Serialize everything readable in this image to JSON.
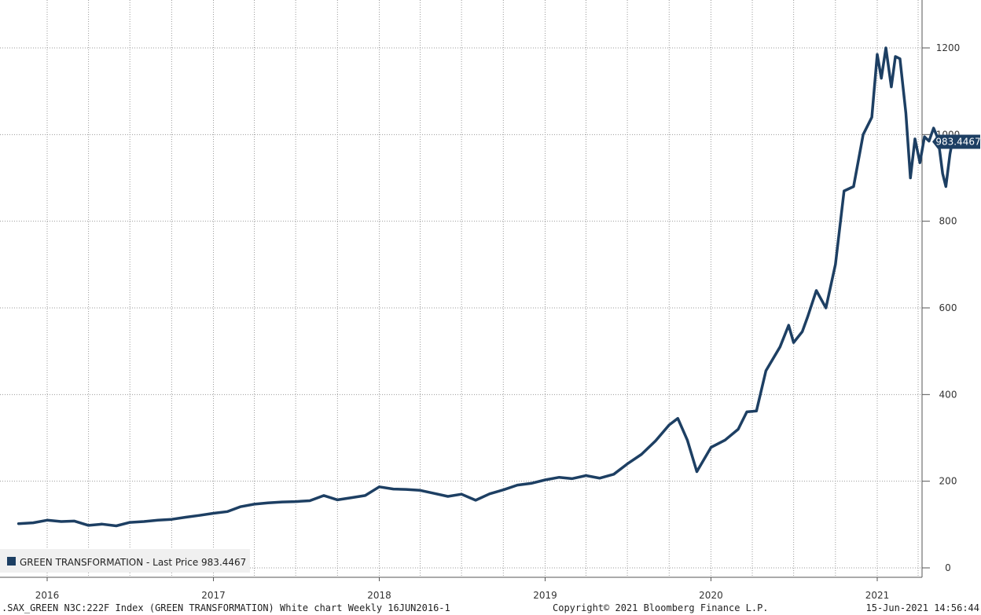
{
  "chart_data": {
    "type": "line",
    "title": "",
    "xlabel": "",
    "ylabel": "",
    "ylim": [
      0,
      1300
    ],
    "y_ticks": [
      0,
      200,
      400,
      600,
      800,
      1000,
      1200
    ],
    "x_ticks": [
      "2016",
      "2017",
      "2018",
      "2019",
      "2020",
      "2021"
    ],
    "x_tick_dates": [
      "2016-01-01",
      "2017-01-01",
      "2018-01-01",
      "2019-01-01",
      "2020-01-01",
      "2021-01-01"
    ],
    "grid": true,
    "legend_position": "bottom-left",
    "series": [
      {
        "name": "GREEN TRANSFORMATION",
        "color": "#1d3f63",
        "points": [
          [
            "2015-10-30",
            102
          ],
          [
            "2015-12-01",
            104
          ],
          [
            "2016-01-01",
            110
          ],
          [
            "2016-02-01",
            107
          ],
          [
            "2016-03-01",
            108
          ],
          [
            "2016-04-01",
            98
          ],
          [
            "2016-05-01",
            101
          ],
          [
            "2016-06-01",
            97
          ],
          [
            "2016-07-01",
            105
          ],
          [
            "2016-08-01",
            107
          ],
          [
            "2016-09-01",
            110
          ],
          [
            "2016-10-01",
            112
          ],
          [
            "2016-11-01",
            117
          ],
          [
            "2016-12-01",
            121
          ],
          [
            "2017-01-01",
            126
          ],
          [
            "2017-02-01",
            130
          ],
          [
            "2017-03-01",
            141
          ],
          [
            "2017-04-01",
            147
          ],
          [
            "2017-05-01",
            150
          ],
          [
            "2017-06-01",
            152
          ],
          [
            "2017-07-01",
            153
          ],
          [
            "2017-08-01",
            155
          ],
          [
            "2017-09-01",
            167
          ],
          [
            "2017-10-01",
            157
          ],
          [
            "2017-11-01",
            162
          ],
          [
            "2017-12-01",
            167
          ],
          [
            "2018-01-01",
            187
          ],
          [
            "2018-02-01",
            182
          ],
          [
            "2018-03-01",
            181
          ],
          [
            "2018-04-01",
            179
          ],
          [
            "2018-05-01",
            172
          ],
          [
            "2018-06-01",
            165
          ],
          [
            "2018-07-01",
            170
          ],
          [
            "2018-08-01",
            156
          ],
          [
            "2018-09-01",
            171
          ],
          [
            "2018-10-01",
            180
          ],
          [
            "2018-11-01",
            191
          ],
          [
            "2018-12-01",
            195
          ],
          [
            "2019-01-01",
            203
          ],
          [
            "2019-02-01",
            209
          ],
          [
            "2019-03-01",
            206
          ],
          [
            "2019-04-01",
            213
          ],
          [
            "2019-05-01",
            207
          ],
          [
            "2019-06-01",
            216
          ],
          [
            "2019-07-01",
            240
          ],
          [
            "2019-08-01",
            262
          ],
          [
            "2019-09-01",
            293
          ],
          [
            "2019-10-01",
            330
          ],
          [
            "2019-10-20",
            345
          ],
          [
            "2019-11-10",
            295
          ],
          [
            "2019-12-01",
            222
          ],
          [
            "2020-01-01",
            278
          ],
          [
            "2020-02-01",
            295
          ],
          [
            "2020-03-01",
            320
          ],
          [
            "2020-03-20",
            360
          ],
          [
            "2020-04-10",
            362
          ],
          [
            "2020-05-01",
            455
          ],
          [
            "2020-06-01",
            510
          ],
          [
            "2020-06-20",
            560
          ],
          [
            "2020-07-01",
            520
          ],
          [
            "2020-07-20",
            545
          ],
          [
            "2020-08-01",
            580
          ],
          [
            "2020-08-20",
            640
          ],
          [
            "2020-09-10",
            600
          ],
          [
            "2020-10-01",
            700
          ],
          [
            "2020-10-20",
            870
          ],
          [
            "2020-11-10",
            880
          ],
          [
            "2020-12-01",
            1000
          ],
          [
            "2020-12-20",
            1040
          ],
          [
            "2021-01-01",
            1185
          ],
          [
            "2021-01-10",
            1130
          ],
          [
            "2021-01-20",
            1200
          ],
          [
            "2021-02-01",
            1110
          ],
          [
            "2021-02-10",
            1180
          ],
          [
            "2021-02-20",
            1175
          ],
          [
            "2021-03-05",
            1050
          ],
          [
            "2021-03-15",
            900
          ],
          [
            "2021-03-25",
            990
          ],
          [
            "2021-04-05",
            935
          ],
          [
            "2021-04-15",
            995
          ],
          [
            "2021-04-25",
            985
          ],
          [
            "2021-05-05",
            1015
          ],
          [
            "2021-05-15",
            990
          ],
          [
            "2021-05-25",
            910
          ],
          [
            "2021-06-01",
            880
          ],
          [
            "2021-06-10",
            955
          ],
          [
            "2021-06-15",
            983.4467
          ]
        ]
      }
    ],
    "last_value_label": "983.4467",
    "legend_text": "GREEN TRANSFORMATION - Last Price 983.4467"
  },
  "footer": {
    "left": ".SAX_GREEN N3C:222F Index (GREEN TRANSFORMATION) White chart  Weekly 16JUN2016-1",
    "center": "Copyright© 2021 Bloomberg Finance L.P.",
    "right": "15-Jun-2021 14:56:44"
  }
}
